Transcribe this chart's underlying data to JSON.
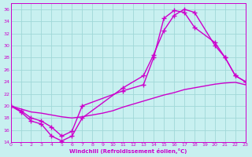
{
  "xlabel": "Windchill (Refroidissement éolien,°C)",
  "ylabel": "",
  "xlim": [
    0,
    23
  ],
  "ylim": [
    14,
    37
  ],
  "yticks": [
    14,
    16,
    18,
    20,
    22,
    24,
    26,
    28,
    30,
    32,
    34,
    36
  ],
  "xticks": [
    0,
    1,
    2,
    3,
    4,
    5,
    6,
    7,
    8,
    9,
    10,
    11,
    12,
    13,
    14,
    15,
    16,
    17,
    18,
    19,
    20,
    21,
    22,
    23
  ],
  "bg_color": "#c8f0f0",
  "grid_color": "#a0d8d8",
  "line_color": "#cc00cc",
  "line_width": 1.0,
  "marker": "+",
  "markersize": 4,
  "markeredgewidth": 1.0,
  "curve1_x": [
    0,
    1,
    2,
    3,
    4,
    5,
    6,
    7,
    11,
    13,
    14,
    15,
    16,
    17,
    18,
    20,
    21,
    22,
    23
  ],
  "curve1_y": [
    20.0,
    19.0,
    17.5,
    17.0,
    15.0,
    14.2,
    15.0,
    18.0,
    23.0,
    25.0,
    28.5,
    32.5,
    35.0,
    36.0,
    35.5,
    30.0,
    28.0,
    25.0,
    24.0
  ],
  "curve2_x": [
    0,
    1,
    2,
    3,
    4,
    5,
    6,
    7,
    8,
    9,
    10,
    11,
    12,
    13,
    14,
    15,
    16,
    17,
    18,
    19,
    20,
    21,
    22,
    23
  ],
  "curve2_y": [
    20.0,
    19.5,
    19.0,
    18.8,
    18.5,
    18.2,
    18.0,
    18.2,
    18.5,
    18.8,
    19.2,
    19.8,
    20.3,
    20.8,
    21.3,
    21.8,
    22.2,
    22.7,
    23.0,
    23.3,
    23.6,
    23.8,
    23.9,
    23.5
  ],
  "curve3_x": [
    0,
    1,
    2,
    3,
    4,
    5,
    6,
    7,
    11,
    13,
    14,
    15,
    16,
    17,
    18,
    20,
    21,
    22,
    23
  ],
  "curve3_y": [
    20.0,
    19.2,
    18.0,
    17.5,
    16.5,
    15.0,
    15.8,
    20.0,
    22.5,
    23.5,
    28.0,
    34.5,
    35.8,
    35.5,
    33.0,
    30.5,
    28.0,
    25.0,
    24.0
  ]
}
